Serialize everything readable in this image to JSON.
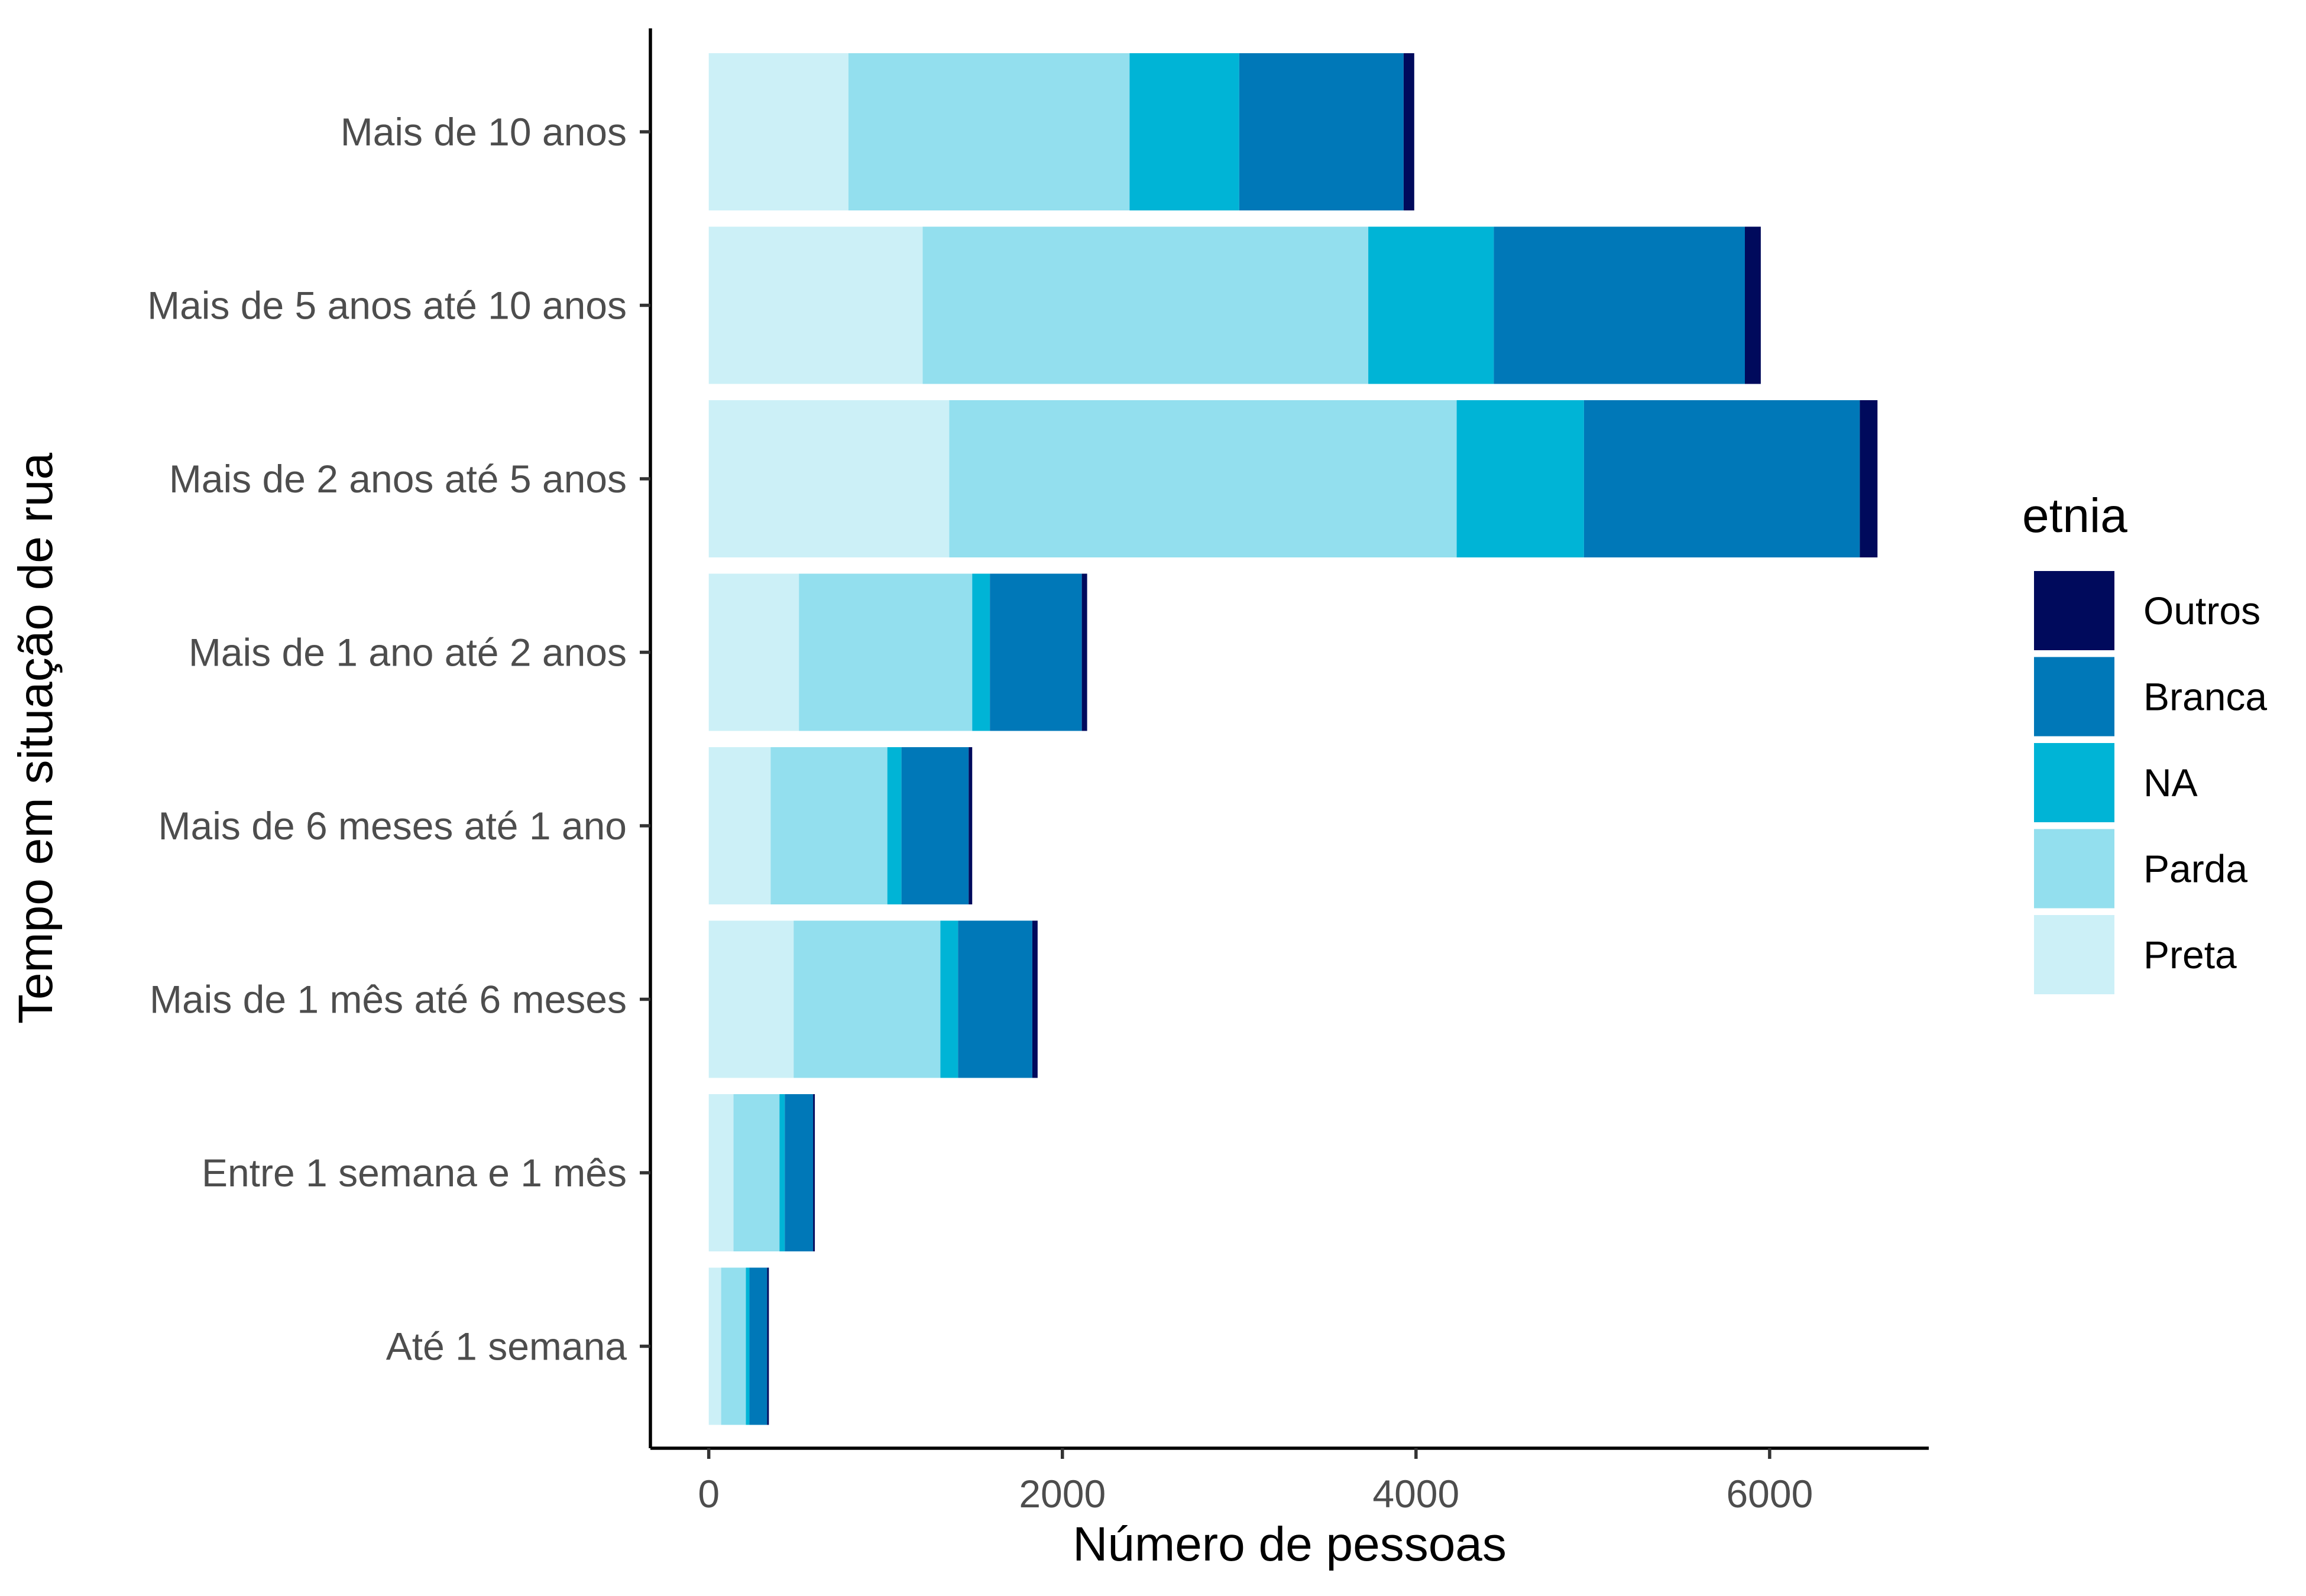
{
  "chart_data": {
    "type": "bar",
    "orientation": "horizontal",
    "stacked": true,
    "title": "",
    "xlabel": "Número de pessoas",
    "ylabel": "Tempo em situação de rua",
    "xlim": [
      -330,
      6900
    ],
    "xticks": [
      0,
      2000,
      4000,
      6000
    ],
    "xtick_labels": [
      "0",
      "2000",
      "4000",
      "6000"
    ],
    "grid": false,
    "legend_title": "etnia",
    "legend_position": "right",
    "categories": [
      "Mais de 10 anos",
      "Mais de 5 anos até 10 anos",
      "Mais de 2 anos até 5 anos",
      "Mais de 1 ano até 2 anos",
      "Mais de 6 meses até 1 ano",
      "Mais de 1 mês até 6 meses",
      "Entre 1 semana e 1 mês",
      "Até 1 semana"
    ],
    "stack_order": [
      "Preta",
      "Parda",
      "NA",
      "Branca",
      "Outros"
    ],
    "legend_order": [
      "Outros",
      "Branca",
      "NA",
      "Parda",
      "Preta"
    ],
    "series": [
      {
        "name": "Preta",
        "color": "#ccf0f7",
        "values": [
          790,
          1210,
          1360,
          510,
          350,
          480,
          140,
          70
        ]
      },
      {
        "name": "Parda",
        "color": "#93dfee",
        "values": [
          1590,
          2520,
          2870,
          980,
          660,
          830,
          260,
          140
        ]
      },
      {
        "name": "NA",
        "color": "#00b4d6",
        "values": [
          620,
          710,
          720,
          100,
          80,
          100,
          30,
          20
        ]
      },
      {
        "name": "Branca",
        "color": "#0078b8",
        "values": [
          930,
          1420,
          1560,
          520,
          380,
          420,
          160,
          100
        ]
      },
      {
        "name": "Outros",
        "color": "#000a5c",
        "values": [
          60,
          90,
          100,
          30,
          20,
          30,
          10,
          10
        ]
      }
    ]
  }
}
